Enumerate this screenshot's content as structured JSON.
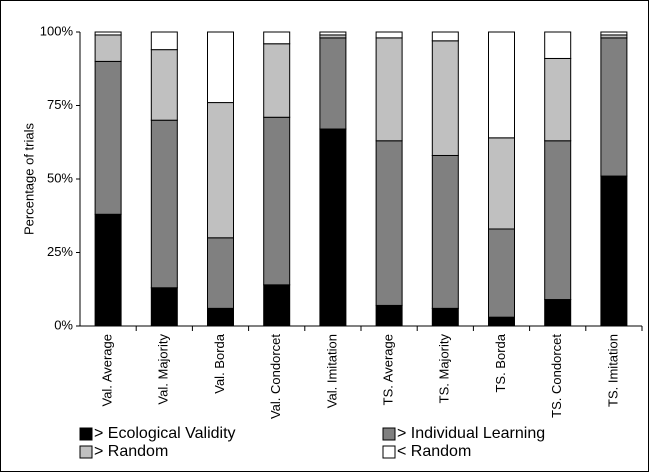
{
  "chart_data": {
    "type": "stacked_bar",
    "y_label": "Percentage of trials",
    "categories": [
      "Val. Average",
      "Val. Majority",
      "Val. Borda",
      "Val. Condorcet",
      "Val. Imitation",
      "TS. Average",
      "TS. Majority",
      "TS. Borda",
      "TS. Condorcet",
      "TS. Imitation"
    ],
    "series": [
      {
        "name": "> Ecological Validity",
        "color": "#000000",
        "values": [
          38,
          13,
          6,
          14,
          67,
          7,
          6,
          3,
          9,
          51
        ]
      },
      {
        "name": "> Individual Learning",
        "color": "#808080",
        "values": [
          52,
          57,
          24,
          57,
          31,
          56,
          52,
          30,
          54,
          47
        ]
      },
      {
        "name": "> Random",
        "color": "#c0c0c0",
        "values": [
          9,
          24,
          46,
          25,
          1,
          35,
          39,
          31,
          28,
          1
        ]
      },
      {
        "name": "< Random",
        "color": "#ffffff",
        "values": [
          1,
          6,
          24,
          4,
          1,
          2,
          3,
          36,
          9,
          1
        ]
      }
    ],
    "ylim": [
      0,
      100
    ],
    "yticks": [
      {
        "value": 0,
        "label": "0%"
      },
      {
        "value": 25,
        "label": "25%"
      },
      {
        "value": 50,
        "label": "50%"
      },
      {
        "value": 75,
        "label": "75%"
      },
      {
        "value": 100,
        "label": "100%"
      }
    ],
    "grid": false
  }
}
